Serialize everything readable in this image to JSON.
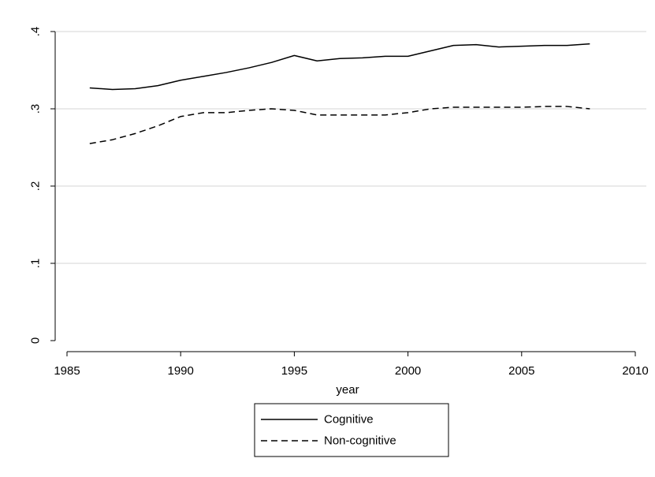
{
  "chart_data": {
    "type": "line",
    "title": "",
    "xlabel": "year",
    "ylabel": "",
    "xlim": [
      1985,
      2010
    ],
    "ylim": [
      0,
      0.4
    ],
    "x_ticks": [
      1985,
      1990,
      1995,
      2000,
      2005,
      2010
    ],
    "x_tick_labels": [
      "1985",
      "1990",
      "1995",
      "2000",
      "2005",
      "2010"
    ],
    "y_ticks": [
      0,
      0.1,
      0.2,
      0.3,
      0.4
    ],
    "y_tick_labels": [
      "0",
      ".1",
      ".2",
      ".3",
      ".4"
    ],
    "grid": "horizontal",
    "legend_position": "bottom",
    "x": [
      1986,
      1987,
      1988,
      1989,
      1990,
      1991,
      1992,
      1993,
      1994,
      1995,
      1996,
      1997,
      1998,
      1999,
      2000,
      2001,
      2002,
      2003,
      2004,
      2005,
      2006,
      2007,
      2008
    ],
    "series": [
      {
        "name": "Cognitive",
        "line_style": "solid",
        "color": "#000000",
        "values": [
          0.327,
          0.325,
          0.326,
          0.33,
          0.337,
          0.342,
          0.347,
          0.353,
          0.36,
          0.369,
          0.362,
          0.365,
          0.366,
          0.368,
          0.368,
          0.375,
          0.382,
          0.383,
          0.38,
          0.381,
          0.382,
          0.382,
          0.384
        ]
      },
      {
        "name": "Non-cognitive",
        "line_style": "dashed",
        "color": "#000000",
        "values": [
          0.255,
          0.26,
          0.268,
          0.278,
          0.29,
          0.295,
          0.295,
          0.298,
          0.3,
          0.298,
          0.292,
          0.292,
          0.292,
          0.292,
          0.295,
          0.3,
          0.302,
          0.302,
          0.302,
          0.302,
          0.303,
          0.303,
          0.3
        ]
      }
    ]
  }
}
